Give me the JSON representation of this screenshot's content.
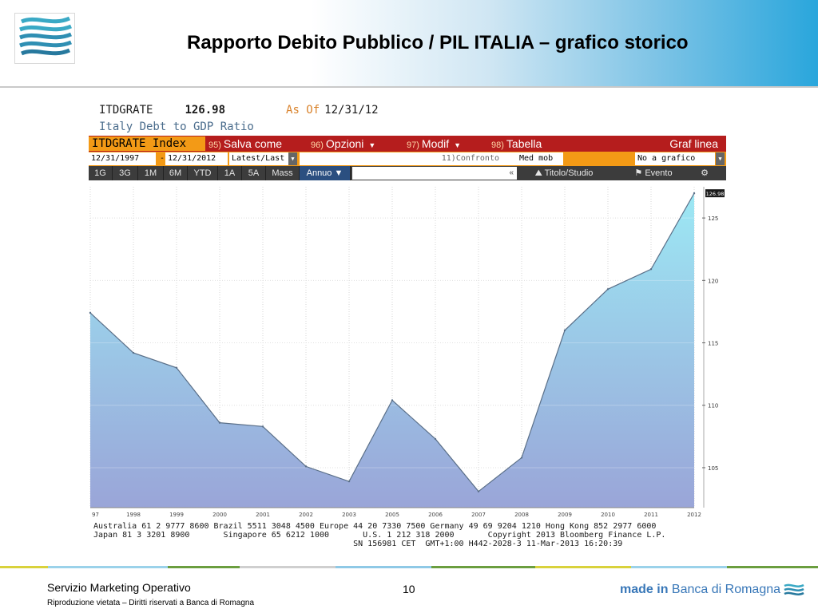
{
  "slide": {
    "title": "Rapporto Debito Pubblico / PIL ITALIA – grafico storico",
    "footer_left": "Servizio Marketing Operativo",
    "footer_sub": "Riproduzione vietata – Diritti riservati a Banca di Romagna",
    "page_number": "10",
    "brand_made_in": "made in",
    "brand_bank": "Banca di Romagna"
  },
  "bloomberg": {
    "ticker": "ITDGRATE",
    "last_value": "126.98",
    "as_of_label": "As Of",
    "as_of_date": "12/31/12",
    "description": "Italy Debt to GDP Ratio",
    "toolbar": {
      "index": "ITDGRATE Index",
      "save_num": "95)",
      "save": "Salva come",
      "options_num": "96)",
      "options": "Opzioni",
      "modify_num": "97)",
      "modify": "Modif",
      "table_num": "98)",
      "table": "Tabella",
      "chart_type": "Graf linea"
    },
    "range": {
      "start": "12/31/1997",
      "dash": "-",
      "end": "12/31/2012",
      "mode": "Latest/Last",
      "compare_num": "11)",
      "compare": "Confronto",
      "moving_avg": "Med mob",
      "info": "No a grafico infe"
    },
    "periods": [
      "1G",
      "3G",
      "1M",
      "6M",
      "YTD",
      "1A",
      "5A",
      "Mass",
      "Annuo ▼"
    ],
    "search_glyph": "«",
    "title_study": "Titolo/Studio",
    "event": "Evento",
    "footer_lines": [
      "Australia 61 2 9777 8600 Brazil 5511 3048 4500 Europe 44 20 7330 7500 Germany 49 69 9204 1210 Hong Kong 852 2977 6000",
      "Japan 81 3 3201 8900       Singapore 65 6212 1000       U.S. 1 212 318 2000       Copyright 2013 Bloomberg Finance L.P.",
      "                                                      SN 156981 CET  GMT+1:00 H442-2028-3 11-Mar-2013 16:20:39"
    ]
  },
  "chart_data": {
    "type": "area",
    "x": [
      "97",
      "1998",
      "1999",
      "2000",
      "2001",
      "2002",
      "2003",
      "2005",
      "2006",
      "2007",
      "2008",
      "2009",
      "2010",
      "2011",
      "2012"
    ],
    "values": [
      117.4,
      114.2,
      113.0,
      108.6,
      108.3,
      105.1,
      103.9,
      110.4,
      107.3,
      103.1,
      105.8,
      116.0,
      119.3,
      120.9,
      126.98
    ],
    "ylim": [
      101.8,
      127.5
    ],
    "yticks": [
      105,
      110,
      115,
      120,
      125
    ],
    "ytick_labels": [
      "105",
      "110",
      "115",
      "120",
      "125"
    ],
    "last_label": "126.98",
    "grid": true,
    "fill_top": "#9ce8f4",
    "fill_bottom": "#9aa5d8",
    "line_color": "#5a6f88"
  }
}
